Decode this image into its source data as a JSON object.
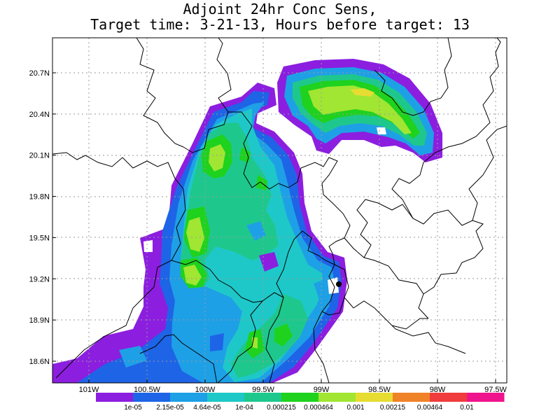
{
  "title": {
    "line1": "Adjoint 24hr Conc Sens,",
    "line2": "Target time: 3-21-13, Hours before target: 13"
  },
  "map": {
    "lat_labels": [
      "20.7N",
      "20.4N",
      "20.1N",
      "19.8N",
      "19.5N",
      "19.2N",
      "18.9N",
      "18.6N"
    ],
    "lon_labels": [
      "101W",
      "100.5W",
      "100W",
      "99.5W",
      "99W",
      "98.5W",
      "98W",
      "97.5W"
    ],
    "grid": true,
    "marker": {
      "lat": 19.15,
      "lon": -98.85
    }
  },
  "legend": {
    "labels": [
      "1e-05",
      "2.15e-05",
      "4.64e-05",
      "1e-04",
      "0.000215",
      "0.000464",
      "0.001",
      "0.00215",
      "0.00464",
      "0.01"
    ],
    "colors": [
      "#8c1ee0",
      "#1e64e6",
      "#1ea0e6",
      "#1ec8c8",
      "#1ec88c",
      "#1ed21e",
      "#a0e632",
      "#e6dc32",
      "#f08228",
      "#f03c3c",
      "#f0148c"
    ]
  }
}
